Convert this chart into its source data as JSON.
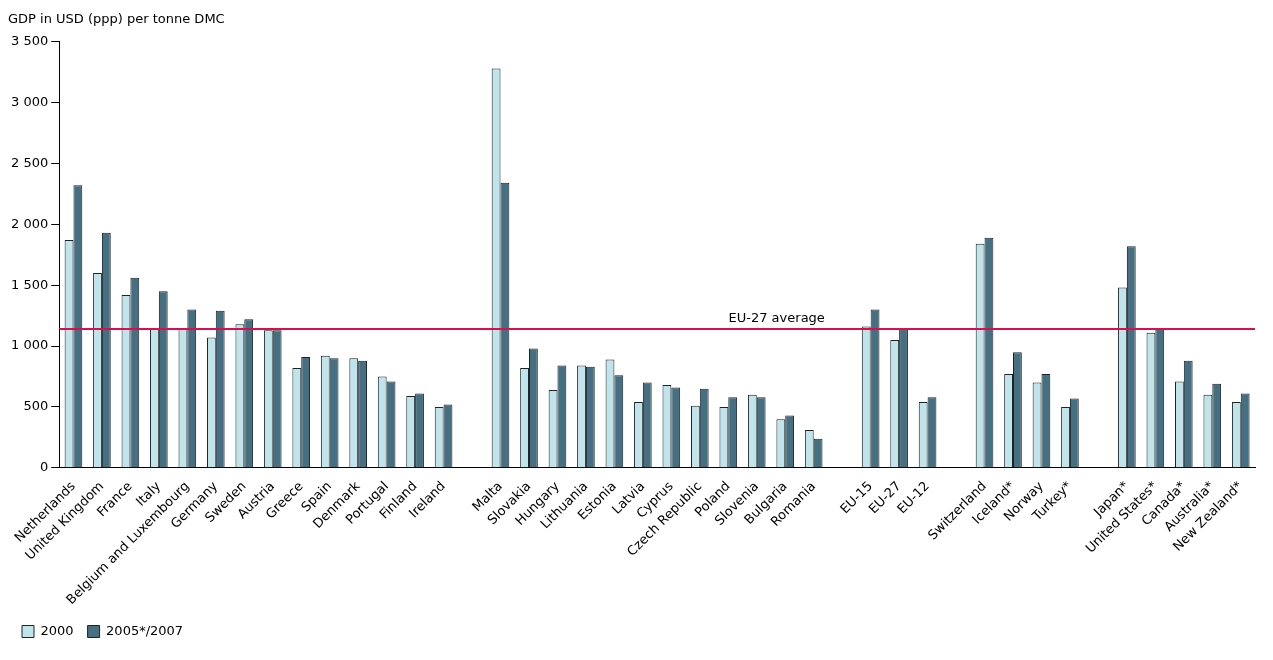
{
  "chart_data": {
    "type": "bar",
    "ylabel": "GDP in USD (ppp) per tonne DMC",
    "categories": [
      "Netherlands",
      "United Kingdom",
      "France",
      "Italy",
      "Belgium and Luxembourg",
      "Germany",
      "Sweden",
      "Austria",
      "Greece",
      "Spain",
      "Denmark",
      "Portugal",
      "Finland",
      "Ireland",
      null,
      "Malta",
      "Slovakia",
      "Hungary",
      "Lithuania",
      "Estonia",
      "Latvia",
      "Cyprus",
      "Czech Republic",
      "Poland",
      "Slovenia",
      "Bulgaria",
      "Romania",
      null,
      "EU-15",
      "EU-27",
      "EU-12",
      null,
      "Switzerland",
      "Iceland*",
      "Norway",
      "Turkey*",
      null,
      "Japan*",
      "United States*",
      "Canada*",
      "Australia*",
      "New Zealand*"
    ],
    "series": [
      {
        "name": "2000",
        "color": "#c0e4ec",
        "values": [
          1870,
          1600,
          1420,
          1140,
          1140,
          1070,
          1180,
          1130,
          820,
          920,
          900,
          750,
          590,
          500,
          null,
          3280,
          820,
          640,
          840,
          890,
          540,
          680,
          510,
          500,
          600,
          400,
          310,
          null,
          1160,
          1050,
          540,
          null,
          1840,
          770,
          700,
          500,
          null,
          1480,
          1110,
          710,
          600,
          540
        ]
      },
      {
        "name": "2005*/2007",
        "color": "#456f82",
        "values": [
          2320,
          1930,
          1560,
          1450,
          1300,
          1290,
          1220,
          1130,
          910,
          900,
          880,
          710,
          610,
          520,
          null,
          2340,
          980,
          840,
          830,
          760,
          700,
          660,
          650,
          580,
          580,
          430,
          240,
          null,
          1300,
          1140,
          580,
          null,
          1890,
          950,
          770,
          570,
          null,
          1820,
          1140,
          880,
          690,
          610
        ]
      }
    ],
    "ylim": [
      0,
      3500
    ],
    "yticks": [
      {
        "value": 0,
        "label": "0"
      },
      {
        "value": 500,
        "label": "500"
      },
      {
        "value": 1000,
        "label": "1 000"
      },
      {
        "value": 1500,
        "label": "1 500"
      },
      {
        "value": 2000,
        "label": "2 000"
      },
      {
        "value": 2500,
        "label": "2 500"
      },
      {
        "value": 3000,
        "label": "3 000"
      },
      {
        "value": 3500,
        "label": "3 500"
      }
    ],
    "ref_lines": [
      {
        "axis": "y",
        "value": 1140,
        "label": "EU-27 average",
        "color": "#d6104f"
      }
    ],
    "grid": false,
    "legend": "bottom left"
  }
}
